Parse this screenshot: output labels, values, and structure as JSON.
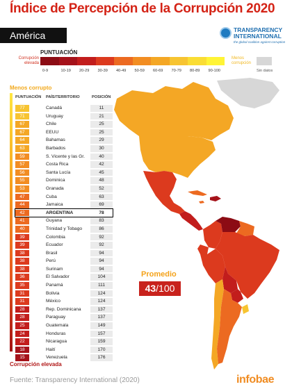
{
  "header": {
    "title": "Índice de Percepción de la Corrupción 2020",
    "region": "América",
    "brand_name_1": "TRANSPARENCY",
    "brand_name_2": "INTERNATIONAL",
    "brand_tagline": "the global coalition against corruption"
  },
  "legend": {
    "heading": "PUNTUACIÓN",
    "left_label_1": "Corrupción",
    "left_label_2": "elevada",
    "right_label_1": "Menos",
    "right_label_2": "corrupción",
    "no_data_label": "Sin datos",
    "buckets": [
      "0-9",
      "10-19",
      "20-29",
      "30-39",
      "40-49",
      "50-59",
      "60-69",
      "70-79",
      "80-89",
      "90-100"
    ],
    "colors": [
      "#8c0c14",
      "#a5121a",
      "#c21d1c",
      "#dc3a1e",
      "#ec6a21",
      "#f28d22",
      "#f4a725",
      "#f7c431",
      "#fadd34",
      "#fff436"
    ],
    "no_data_color": "#d7d7d7"
  },
  "table_labels": {
    "top_note": "Menos corrupto",
    "bottom_note": "Corrupción elevada",
    "col_score": "PUNTUACIÓN",
    "col_country": "PAÍS/TERRITORIO",
    "col_position": "POSICIÓN"
  },
  "chart_data": {
    "type": "table",
    "highlight": "ARGENTINA",
    "rows": [
      {
        "country": "Canadá",
        "score": 77,
        "position": 11
      },
      {
        "country": "Uruguay",
        "score": 71,
        "position": 21
      },
      {
        "country": "Chile",
        "score": 67,
        "position": 25
      },
      {
        "country": "EEUU",
        "score": 67,
        "position": 25
      },
      {
        "country": "Bahamas",
        "score": 64,
        "position": 29
      },
      {
        "country": "Barbados",
        "score": 63,
        "position": 30
      },
      {
        "country": "S. Vicente y las Gr.",
        "score": 59,
        "position": 40
      },
      {
        "country": "Costa Rica",
        "score": 57,
        "position": 42
      },
      {
        "country": "Santa Lucía",
        "score": 56,
        "position": 45
      },
      {
        "country": "Dominica",
        "score": 55,
        "position": 48
      },
      {
        "country": "Granada",
        "score": 53,
        "position": 52
      },
      {
        "country": "Cuba",
        "score": 47,
        "position": 63
      },
      {
        "country": "Jamaica",
        "score": 44,
        "position": 69
      },
      {
        "country": "ARGENTINA",
        "score": 42,
        "position": 78
      },
      {
        "country": "Guyana",
        "score": 41,
        "position": 83
      },
      {
        "country": "Trinidad y Tobago",
        "score": 40,
        "position": 86
      },
      {
        "country": "Colombia",
        "score": 39,
        "position": 92
      },
      {
        "country": "Ecuador",
        "score": 39,
        "position": 92
      },
      {
        "country": "Brasil",
        "score": 38,
        "position": 94
      },
      {
        "country": "Perú",
        "score": 38,
        "position": 94
      },
      {
        "country": "Surinam",
        "score": 38,
        "position": 94
      },
      {
        "country": "El Salvador",
        "score": 36,
        "position": 104
      },
      {
        "country": "Panamá",
        "score": 35,
        "position": 111
      },
      {
        "country": "Bolivia",
        "score": 31,
        "position": 124
      },
      {
        "country": "México",
        "score": 31,
        "position": 124
      },
      {
        "country": "Rep. Dominicana",
        "score": 28,
        "position": 137
      },
      {
        "country": "Paraguay",
        "score": 28,
        "position": 137
      },
      {
        "country": "Guatemala",
        "score": 25,
        "position": 149
      },
      {
        "country": "Honduras",
        "score": 24,
        "position": 157
      },
      {
        "country": "Nicaragua",
        "score": 22,
        "position": 159
      },
      {
        "country": "Haití",
        "score": 18,
        "position": 170
      },
      {
        "country": "Venezuela",
        "score": 15,
        "position": 176
      }
    ],
    "average_label": "Promedio",
    "average_value": "43",
    "average_suffix": "/100"
  },
  "footer": {
    "source": "Fuente: Transparency International (2020)",
    "brand": "infobae"
  }
}
